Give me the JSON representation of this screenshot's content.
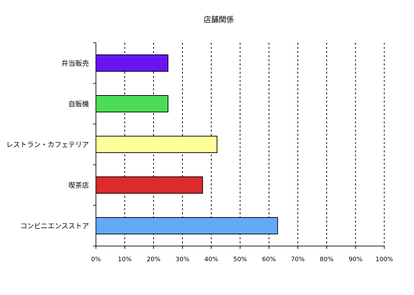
{
  "chart_data": {
    "type": "bar",
    "orientation": "horizontal",
    "title": "店舗関係",
    "xlabel": "",
    "ylabel": "",
    "categories": [
      "弁当販売",
      "自販機",
      "レストラン・カフェテリア",
      "喫茶店",
      "コンビニエンスストア"
    ],
    "values": [
      25,
      25,
      42,
      37,
      63
    ],
    "colors": [
      "#6a14f5",
      "#4ddd55",
      "#ffff99",
      "#dd2a2a",
      "#64a8f8"
    ],
    "xlim": [
      0,
      100
    ],
    "xticks": [
      "0%",
      "10%",
      "20%",
      "30%",
      "40%",
      "50%",
      "60%",
      "70%",
      "80%",
      "90%",
      "100%"
    ],
    "grid": "vertical-dashed",
    "legend": "none"
  }
}
